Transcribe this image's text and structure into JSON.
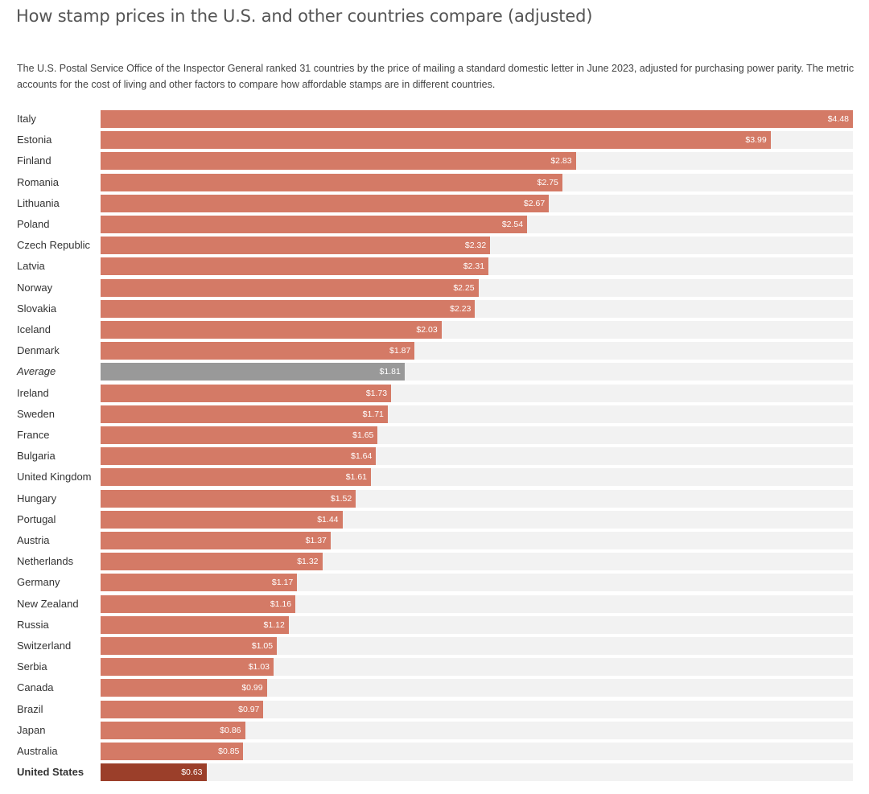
{
  "chart_data": {
    "type": "bar",
    "orientation": "horizontal",
    "title": "How stamp prices in the U.S. and other countries compare (adjusted)",
    "subtitle": "The U.S. Postal Service Office of the Inspector General ranked 31 countries by the price of mailing a standard domestic letter in June 2023, adjusted for purchasing power parity. The metric accounts for the cost of living and other factors to compare how affordable stamps are in different countries.",
    "xlim": [
      0,
      4.48
    ],
    "grid": false,
    "legend": "none",
    "colors": {
      "default": "#d47a66",
      "average": "#999999",
      "highlight": "#9b3f2a",
      "track": "#f2f2f2"
    },
    "categories": [
      "Italy",
      "Estonia",
      "Finland",
      "Romania",
      "Lithuania",
      "Poland",
      "Czech Republic",
      "Latvia",
      "Norway",
      "Slovakia",
      "Iceland",
      "Denmark",
      "Average",
      "Ireland",
      "Sweden",
      "France",
      "Bulgaria",
      "United Kingdom",
      "Hungary",
      "Portugal",
      "Austria",
      "Netherlands",
      "Germany",
      "New Zealand",
      "Russia",
      "Switzerland",
      "Serbia",
      "Canada",
      "Brazil",
      "Japan",
      "Australia",
      "United States"
    ],
    "values": [
      4.48,
      3.99,
      2.83,
      2.75,
      2.67,
      2.54,
      2.32,
      2.31,
      2.25,
      2.23,
      2.03,
      1.87,
      1.81,
      1.73,
      1.71,
      1.65,
      1.64,
      1.61,
      1.52,
      1.44,
      1.37,
      1.32,
      1.17,
      1.16,
      1.12,
      1.05,
      1.03,
      0.99,
      0.97,
      0.86,
      0.85,
      0.63
    ],
    "value_labels": [
      "$4.48",
      "$3.99",
      "$2.83",
      "$2.75",
      "$2.67",
      "$2.54",
      "$2.32",
      "$2.31",
      "$2.25",
      "$2.23",
      "$2.03",
      "$1.87",
      "$1.81",
      "$1.73",
      "$1.71",
      "$1.65",
      "$1.64",
      "$1.61",
      "$1.52",
      "$1.44",
      "$1.37",
      "$1.32",
      "$1.17",
      "$1.16",
      "$1.12",
      "$1.05",
      "$1.03",
      "$0.99",
      "$0.97",
      "$0.86",
      "$0.85",
      "$0.63"
    ],
    "average_category": "Average",
    "highlight_category": "United States"
  }
}
